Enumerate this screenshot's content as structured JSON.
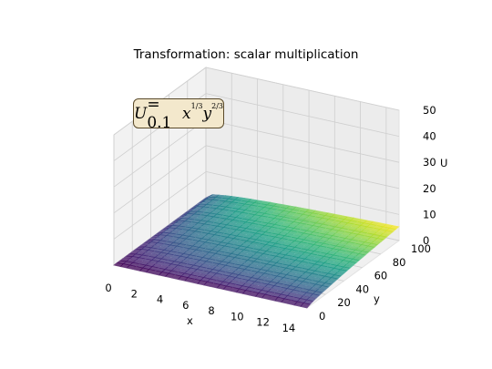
{
  "chart_data": {
    "type": "surface3d",
    "title": "Transformation: scalar multiplication",
    "xlabel": "x",
    "ylabel": "y",
    "zlabel": "U",
    "xlim": [
      0,
      15
    ],
    "ylim": [
      0,
      100
    ],
    "zlim": [
      0,
      50
    ],
    "x_ticks": [
      "0",
      "2",
      "4",
      "6",
      "8",
      "10",
      "12",
      "14"
    ],
    "y_ticks": [
      "0",
      "20",
      "40",
      "60",
      "80",
      "100"
    ],
    "z_ticks": [
      "0",
      "10",
      "20",
      "30",
      "40",
      "50"
    ],
    "function": {
      "coefficient": 0.1,
      "x_exponent": 0.3333,
      "y_exponent": 0.6667
    },
    "surface_samples": [
      {
        "x": 0,
        "y": 0,
        "z": 0
      },
      {
        "x": 0,
        "y": 100,
        "z": 0
      },
      {
        "x": 15,
        "y": 0,
        "z": 0
      },
      {
        "x": 15,
        "y": 50,
        "z": 3.3
      },
      {
        "x": 15,
        "y": 100,
        "z": 5.3
      }
    ],
    "colormap": "viridis",
    "grid": true
  },
  "annotation": {
    "formula_U": "U",
    "formula_eq": " = 0.1",
    "formula_x": "x",
    "formula_x_exp": "1/3",
    "formula_y": "y",
    "formula_y_exp": "2/3"
  }
}
